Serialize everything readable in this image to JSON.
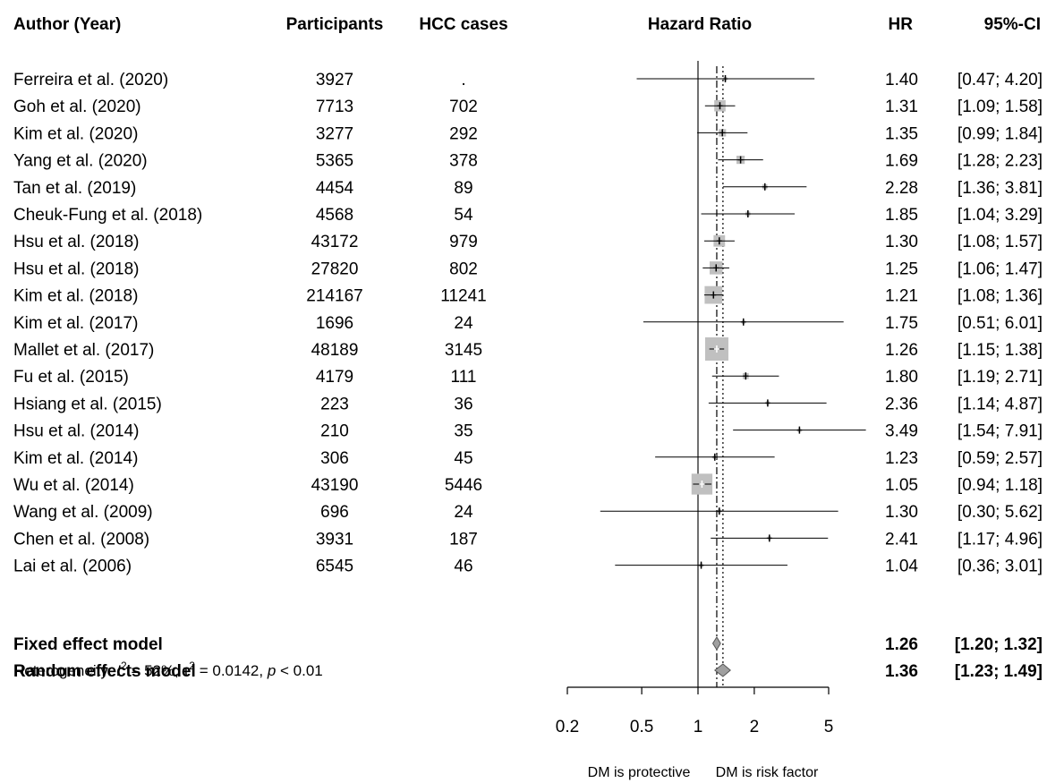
{
  "chart_data": {
    "type": "forest",
    "headers": {
      "study": "Author (Year)",
      "participants": "Participants",
      "cases": "HCC cases",
      "plot": "Hazard Ratio",
      "hr": "HR",
      "ci": "95%-CI"
    },
    "x_scale": "log",
    "xlim": [
      0.2,
      5
    ],
    "ticks": [
      0.2,
      0.5,
      1,
      2,
      5
    ],
    "tick_labels": [
      "0.2",
      "0.5",
      "1",
      "2",
      "5"
    ],
    "reference_line": 1,
    "direction_labels": {
      "left": "DM is protective",
      "right": "DM is risk factor"
    },
    "studies": [
      {
        "name": "Ferreira et al. (2020)",
        "participants": "3927",
        "cases": ".",
        "hr": 1.4,
        "lower": 0.47,
        "upper": 4.2,
        "hr_text": "1.40",
        "ci_text": "[0.47; 4.20]",
        "weight": 0.6
      },
      {
        "name": "Goh et al. (2020)",
        "participants": "7713",
        "cases": "702",
        "hr": 1.31,
        "lower": 1.09,
        "upper": 1.58,
        "hr_text": "1.31",
        "ci_text": "[1.09; 1.58]",
        "weight": 6.4
      },
      {
        "name": "Kim et al. (2020)",
        "participants": "3277",
        "cases": "292",
        "hr": 1.35,
        "lower": 0.99,
        "upper": 1.84,
        "hr_text": "1.35",
        "ci_text": "[0.99; 1.84]",
        "weight": 2.7
      },
      {
        "name": "Yang et al. (2020)",
        "participants": "5365",
        "cases": "378",
        "hr": 1.69,
        "lower": 1.28,
        "upper": 2.23,
        "hr_text": "1.69",
        "ci_text": "[1.28; 2.23]",
        "weight": 3.4
      },
      {
        "name": "Tan et al. (2019)",
        "participants": "4454",
        "cases": "89",
        "hr": 2.28,
        "lower": 1.36,
        "upper": 3.81,
        "hr_text": "2.28",
        "ci_text": "[1.36; 3.81]",
        "weight": 1.2
      },
      {
        "name": "Cheuk-Fung et al. (2018)",
        "participants": "4568",
        "cases": "54",
        "hr": 1.85,
        "lower": 1.04,
        "upper": 3.29,
        "hr_text": "1.85",
        "ci_text": "[1.04; 3.29]",
        "weight": 1.0
      },
      {
        "name": "Hsu et al. (2018)",
        "participants": "43172",
        "cases": "979",
        "hr": 1.3,
        "lower": 1.08,
        "upper": 1.57,
        "hr_text": "1.30",
        "ci_text": "[1.08; 1.57]",
        "weight": 6.6
      },
      {
        "name": "Hsu et al. (2018)",
        "participants": "27820",
        "cases": "802",
        "hr": 1.25,
        "lower": 1.06,
        "upper": 1.47,
        "hr_text": "1.25",
        "ci_text": "[1.06; 1.47]",
        "weight": 8.4
      },
      {
        "name": "Kim et al. (2018)",
        "participants": "214167",
        "cases": "11241",
        "hr": 1.21,
        "lower": 1.08,
        "upper": 1.36,
        "hr_text": "1.21",
        "ci_text": "[1.08; 1.36]",
        "weight": 15.6
      },
      {
        "name": "Kim et al. (2017)",
        "participants": "1696",
        "cases": "24",
        "hr": 1.75,
        "lower": 0.51,
        "upper": 6.01,
        "hr_text": "1.75",
        "ci_text": "[0.51; 6.01]",
        "weight": 0.3
      },
      {
        "name": "Mallet et al. (2017)",
        "participants": "48189",
        "cases": "3145",
        "hr": 1.26,
        "lower": 1.15,
        "upper": 1.38,
        "hr_text": "1.26",
        "ci_text": "[1.15; 1.38]",
        "weight": 27.0
      },
      {
        "name": "Fu et al. (2015)",
        "participants": "4179",
        "cases": "111",
        "hr": 1.8,
        "lower": 1.19,
        "upper": 2.71,
        "hr_text": "1.80",
        "ci_text": "[1.19; 2.71]",
        "weight": 1.8
      },
      {
        "name": "Hsiang et al. (2015)",
        "participants": "223",
        "cases": "36",
        "hr": 2.36,
        "lower": 1.14,
        "upper": 4.87,
        "hr_text": "2.36",
        "ci_text": "[1.14; 4.87]",
        "weight": 0.5
      },
      {
        "name": "Hsu et al. (2014)",
        "participants": "210",
        "cases": "35",
        "hr": 3.49,
        "lower": 1.54,
        "upper": 7.91,
        "hr_text": "3.49",
        "ci_text": "[1.54; 7.91]",
        "weight": 0.4
      },
      {
        "name": "Kim et al. (2014)",
        "participants": "306",
        "cases": "45",
        "hr": 1.23,
        "lower": 0.59,
        "upper": 2.57,
        "hr_text": "1.23",
        "ci_text": "[0.59; 2.57]",
        "weight": 0.5
      },
      {
        "name": "Wu et al. (2014)",
        "participants": "43190",
        "cases": "5446",
        "hr": 1.05,
        "lower": 0.94,
        "upper": 1.18,
        "hr_text": "1.05",
        "ci_text": "[0.94; 1.18]",
        "weight": 21.7
      },
      {
        "name": "Wang et al. (2009)",
        "participants": "696",
        "cases": "24",
        "hr": 1.3,
        "lower": 0.3,
        "upper": 5.62,
        "hr_text": "1.30",
        "ci_text": "[0.30; 5.62]",
        "weight": 0.2
      },
      {
        "name": "Chen et al. (2008)",
        "participants": "3931",
        "cases": "187",
        "hr": 2.41,
        "lower": 1.17,
        "upper": 4.96,
        "hr_text": "2.41",
        "ci_text": "[1.17; 4.96]",
        "weight": 0.5
      },
      {
        "name": "Lai et al. (2006)",
        "participants": "6545",
        "cases": "46",
        "hr": 1.04,
        "lower": 0.36,
        "upper": 3.01,
        "hr_text": "1.04",
        "ci_text": "[0.36; 3.01]",
        "weight": 0.3
      }
    ],
    "models": [
      {
        "name": "Fixed effect model",
        "hr": 1.26,
        "lower": 1.2,
        "upper": 1.32,
        "hr_text": "1.26",
        "ci_text": "[1.20; 1.32]"
      },
      {
        "name": "Random effects model",
        "hr": 1.36,
        "lower": 1.23,
        "upper": 1.49,
        "hr_text": "1.36",
        "ci_text": "[1.23; 1.49]"
      }
    ],
    "heterogeneity": {
      "i2": "52%",
      "tau2": "0.0142",
      "p": "< 0.01"
    },
    "colors": {
      "square": "#c0c0c0",
      "diamond": "#a0a0a0",
      "line": "#000000"
    }
  }
}
